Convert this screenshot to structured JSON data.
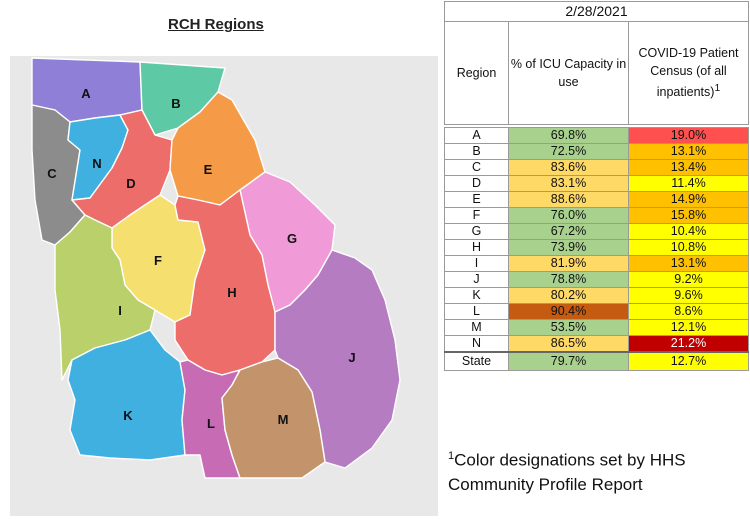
{
  "map": {
    "title": "RCH Regions",
    "regions": [
      {
        "label": "A",
        "color": "#8f7fd6"
      },
      {
        "label": "B",
        "color": "#5ec9a5"
      },
      {
        "label": "C",
        "color": "#8c8c8c"
      },
      {
        "label": "N",
        "color": "#3fb0e0"
      },
      {
        "label": "D",
        "color": "#ec6d6a"
      },
      {
        "label": "E",
        "color": "#f59a47"
      },
      {
        "label": "G",
        "color": "#f19ad8"
      },
      {
        "label": "F",
        "color": "#f5df6e"
      },
      {
        "label": "I",
        "color": "#b9d06b"
      },
      {
        "label": "H",
        "color": "#ec6d6a"
      },
      {
        "label": "J",
        "color": "#b57cc2"
      },
      {
        "label": "K",
        "color": "#3fb0e0"
      },
      {
        "label": "L",
        "color": "#c76bb5"
      },
      {
        "label": "M",
        "color": "#c3946c"
      }
    ]
  },
  "table": {
    "date": "2/28/2021",
    "headers": {
      "region": "Region",
      "icu": "% of ICU Capacity in use",
      "census_line1": "COVID-19 Patient",
      "census_line2": "Census (of all",
      "census_line3": "inpatients)",
      "census_sup": "1"
    },
    "rows": [
      {
        "region": "A",
        "icu": "69.8%",
        "icu_color": "#a9d18e",
        "census": "19.0%",
        "census_color": "#ff5050"
      },
      {
        "region": "B",
        "icu": "72.5%",
        "icu_color": "#a9d18e",
        "census": "13.1%",
        "census_color": "#ffc000"
      },
      {
        "region": "C",
        "icu": "83.6%",
        "icu_color": "#ffd966",
        "census": "13.4%",
        "census_color": "#ffc000"
      },
      {
        "region": "D",
        "icu": "83.1%",
        "icu_color": "#ffd966",
        "census": "11.4%",
        "census_color": "#ffff00"
      },
      {
        "region": "E",
        "icu": "88.6%",
        "icu_color": "#ffd966",
        "census": "14.9%",
        "census_color": "#ffc000"
      },
      {
        "region": "F",
        "icu": "76.0%",
        "icu_color": "#a9d18e",
        "census": "15.8%",
        "census_color": "#ffc000"
      },
      {
        "region": "G",
        "icu": "67.2%",
        "icu_color": "#a9d18e",
        "census": "10.4%",
        "census_color": "#ffff00"
      },
      {
        "region": "H",
        "icu": "73.9%",
        "icu_color": "#a9d18e",
        "census": "10.8%",
        "census_color": "#ffff00"
      },
      {
        "region": "I",
        "icu": "81.9%",
        "icu_color": "#ffd966",
        "census": "13.1%",
        "census_color": "#ffc000"
      },
      {
        "region": "J",
        "icu": "78.8%",
        "icu_color": "#a9d18e",
        "census": "9.2%",
        "census_color": "#ffff00"
      },
      {
        "region": "K",
        "icu": "80.2%",
        "icu_color": "#ffd966",
        "census": "9.6%",
        "census_color": "#ffff00"
      },
      {
        "region": "L",
        "icu": "90.4%",
        "icu_color": "#c55a11",
        "census": "8.6%",
        "census_color": "#ffff00"
      },
      {
        "region": "M",
        "icu": "53.5%",
        "icu_color": "#a9d18e",
        "census": "12.1%",
        "census_color": "#ffff00"
      },
      {
        "region": "N",
        "icu": "86.5%",
        "icu_color": "#ffd966",
        "census": "21.2%",
        "census_color": "#c00000",
        "census_text_color": "#ffffff"
      }
    ],
    "state": {
      "region": "State",
      "icu": "79.7%",
      "icu_color": "#a9d18e",
      "census": "12.7%",
      "census_color": "#ffff00"
    }
  },
  "footnote": {
    "sup": "1",
    "text": "Color designations set by HHS Community Profile Report"
  }
}
